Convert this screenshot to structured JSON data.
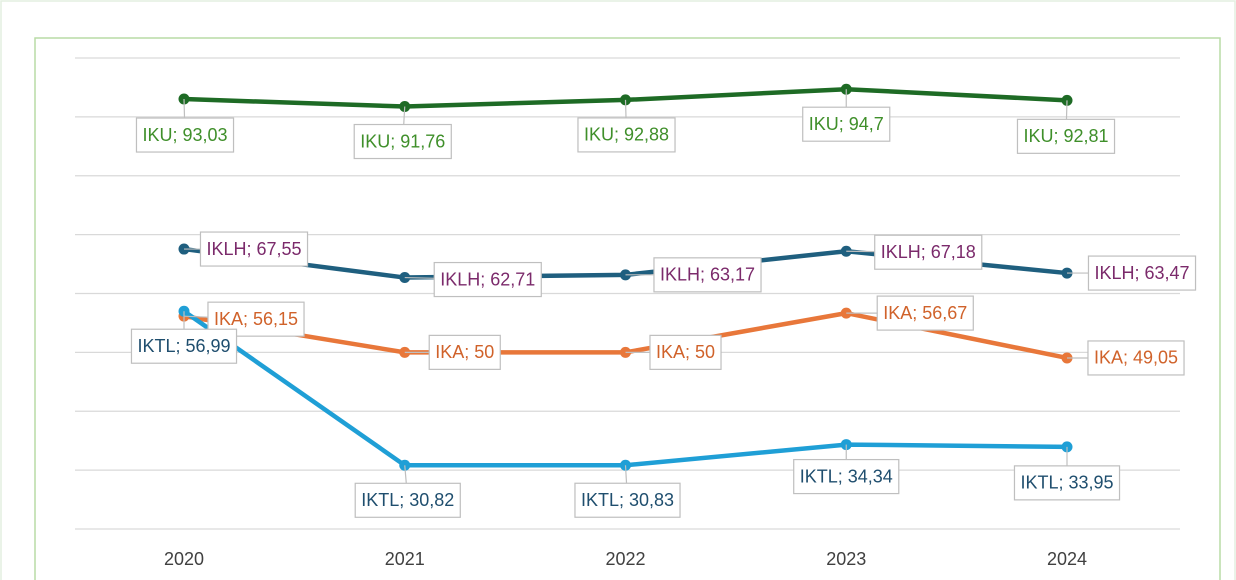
{
  "chart_data": {
    "type": "line",
    "categories": [
      "2020",
      "2021",
      "2022",
      "2023",
      "2024"
    ],
    "ylim": [
      20,
      100
    ],
    "yticks": [
      20,
      30,
      40,
      50,
      60,
      70,
      80,
      90,
      100
    ],
    "grid": true,
    "series": [
      {
        "name": "IKU",
        "color": "#1e6b25",
        "label_color": "#3f8f2a",
        "values": [
          93.03,
          91.76,
          92.88,
          94.7,
          92.81
        ],
        "value_labels": [
          "IKU; 93,03",
          "IKU; 91,76",
          "IKU; 92,88",
          "IKU; 94,7",
          "IKU; 92,81"
        ]
      },
      {
        "name": "IKLH",
        "color": "#1f5f7f",
        "label_color": "#7b2a6b",
        "values": [
          67.55,
          62.71,
          63.17,
          67.18,
          63.47
        ],
        "value_labels": [
          "IKLH; 67,55",
          "IKLH; 62,71",
          "IKLH; 63,17",
          "IKLH; 67,18",
          "IKLH; 63,47"
        ]
      },
      {
        "name": "IKA",
        "color": "#e8773a",
        "label_color": "#d0622a",
        "values": [
          56.15,
          50,
          50,
          56.67,
          49.05
        ],
        "value_labels": [
          "IKA; 56,15",
          "IKA; 50",
          "IKA; 50",
          "IKA; 56,67",
          "IKA; 49,05"
        ]
      },
      {
        "name": "IKTL",
        "color": "#1f9fd6",
        "label_color": "#1f4e6e",
        "values": [
          56.99,
          30.82,
          30.83,
          34.34,
          33.95
        ],
        "value_labels": [
          "IKTL; 56,99",
          "IKTL; 30,82",
          "IKTL; 30,83",
          "IKTL; 34,34",
          "IKTL; 33,95"
        ]
      }
    ]
  }
}
